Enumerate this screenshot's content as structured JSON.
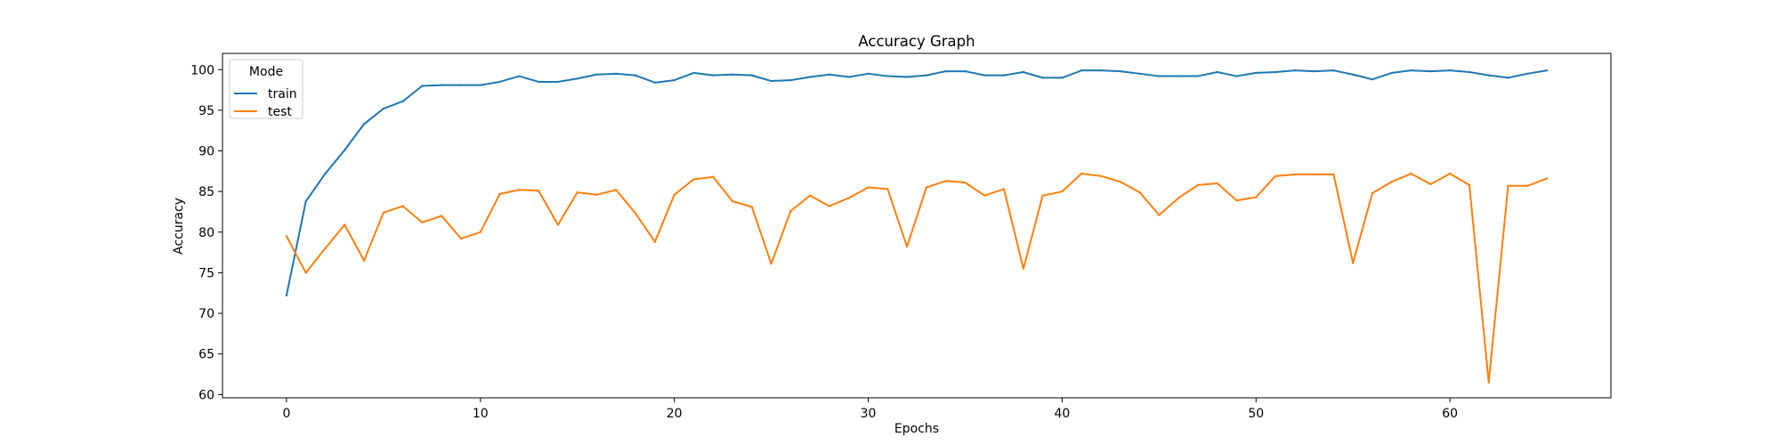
{
  "chart_data": {
    "type": "line",
    "title": "Accuracy Graph",
    "xlabel": "Epochs",
    "ylabel": "Accuracy",
    "xlim": [
      -3.3,
      68.3
    ],
    "ylim": [
      59.6,
      102.0
    ],
    "xticks": [
      0,
      10,
      20,
      30,
      40,
      50,
      60
    ],
    "yticks": [
      60,
      65,
      70,
      75,
      80,
      85,
      90,
      95,
      100
    ],
    "grid": false,
    "legend": {
      "title": "Mode",
      "placement": "top-left"
    },
    "x": [
      0,
      1,
      2,
      3,
      4,
      5,
      6,
      7,
      8,
      9,
      10,
      11,
      12,
      13,
      14,
      15,
      16,
      17,
      18,
      19,
      20,
      21,
      22,
      23,
      24,
      25,
      26,
      27,
      28,
      29,
      30,
      31,
      32,
      33,
      34,
      35,
      36,
      37,
      38,
      39,
      40,
      41,
      42,
      43,
      44,
      45,
      46,
      47,
      48,
      49,
      50,
      51,
      52,
      53,
      54,
      55,
      56,
      57,
      58,
      59,
      60,
      61,
      62,
      63,
      64,
      65
    ],
    "series": [
      {
        "name": "train",
        "color": "#1f77b4",
        "values": [
          72.2,
          83.8,
          87.2,
          90.1,
          93.3,
          95.2,
          96.1,
          98.0,
          98.1,
          98.1,
          98.1,
          98.5,
          99.2,
          98.5,
          98.5,
          98.9,
          99.4,
          99.5,
          99.3,
          98.4,
          98.7,
          99.6,
          99.3,
          99.4,
          99.3,
          98.6,
          98.7,
          99.1,
          99.4,
          99.1,
          99.5,
          99.2,
          99.1,
          99.3,
          99.8,
          99.8,
          99.3,
          99.3,
          99.7,
          99.0,
          99.0,
          99.9,
          99.9,
          99.8,
          99.5,
          99.2,
          99.2,
          99.2,
          99.7,
          99.2,
          99.6,
          99.7,
          99.9,
          99.8,
          99.9,
          99.4,
          98.8,
          99.6,
          99.9,
          99.8,
          99.9,
          99.7,
          99.3,
          99.0,
          99.5,
          99.9
        ]
      },
      {
        "name": "test",
        "color": "#ff7f0e",
        "values": [
          79.5,
          75.0,
          78.0,
          80.9,
          76.5,
          82.4,
          83.2,
          81.2,
          82.0,
          79.2,
          80.0,
          84.7,
          85.2,
          85.1,
          80.9,
          84.9,
          84.6,
          85.2,
          82.3,
          78.8,
          84.6,
          86.5,
          86.8,
          83.8,
          83.1,
          76.1,
          82.6,
          84.5,
          83.2,
          84.2,
          85.5,
          85.3,
          78.2,
          85.5,
          86.3,
          86.1,
          84.5,
          85.3,
          75.5,
          84.5,
          85.0,
          87.2,
          86.9,
          86.2,
          84.9,
          82.1,
          84.2,
          85.8,
          86.0,
          83.9,
          84.3,
          86.9,
          87.1,
          87.1,
          87.1,
          76.2,
          84.8,
          86.2,
          87.2,
          85.9,
          87.2,
          85.8,
          61.5,
          85.7,
          85.7,
          86.6
        ]
      }
    ]
  }
}
